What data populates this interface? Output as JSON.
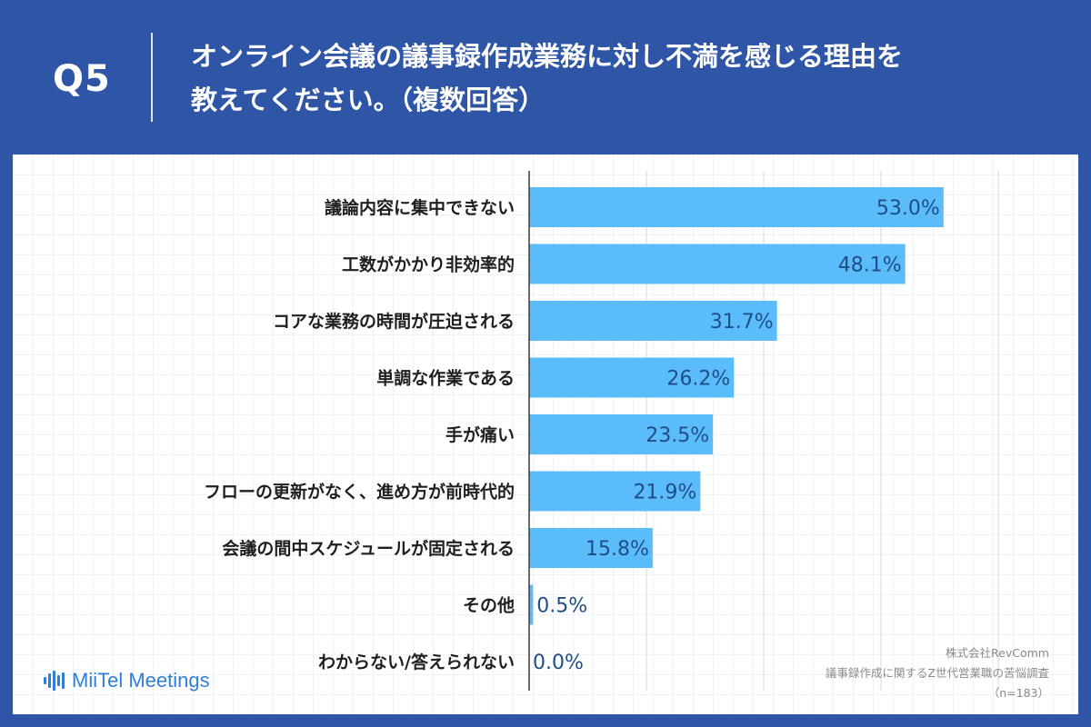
{
  "header": {
    "q_label": "Q5",
    "question_line1": "オンライン会議の議事録作成業務に対し不満を感じる理由を",
    "question_line2": "教えてください。（複数回答）"
  },
  "colors": {
    "header_bg": "#2f56a6",
    "bar": "#5bbcfb",
    "value_text": "#1f4e86",
    "label_text": "#1f1f1f"
  },
  "chart_data": {
    "type": "bar",
    "orientation": "horizontal",
    "categories": [
      "議論内容に集中できない",
      "工数がかかり非効率的",
      "コアな業務の時間が圧迫される",
      "単調な作業である",
      "手が痛い",
      "フローの更新がなく、進め方が前時代的",
      "会議の間中スケジュールが固定される",
      "その他",
      "わからない/答えられない"
    ],
    "values": [
      53.0,
      48.1,
      31.7,
      26.2,
      23.5,
      21.9,
      15.8,
      0.5,
      0.0
    ],
    "value_labels": [
      "53.0%",
      "48.1%",
      "31.7%",
      "26.2%",
      "23.5%",
      "21.9%",
      "15.8%",
      "0.5%",
      "0.0%"
    ],
    "xlim": [
      0,
      60
    ],
    "grid": true,
    "title": "",
    "xlabel": "",
    "ylabel": ""
  },
  "logo": {
    "brand": "MiiTel Meetings"
  },
  "source": {
    "company": "株式会社RevComm",
    "survey": "議事録作成に関するZ世代営業職の苦悩調査",
    "n": "（n=183）"
  }
}
